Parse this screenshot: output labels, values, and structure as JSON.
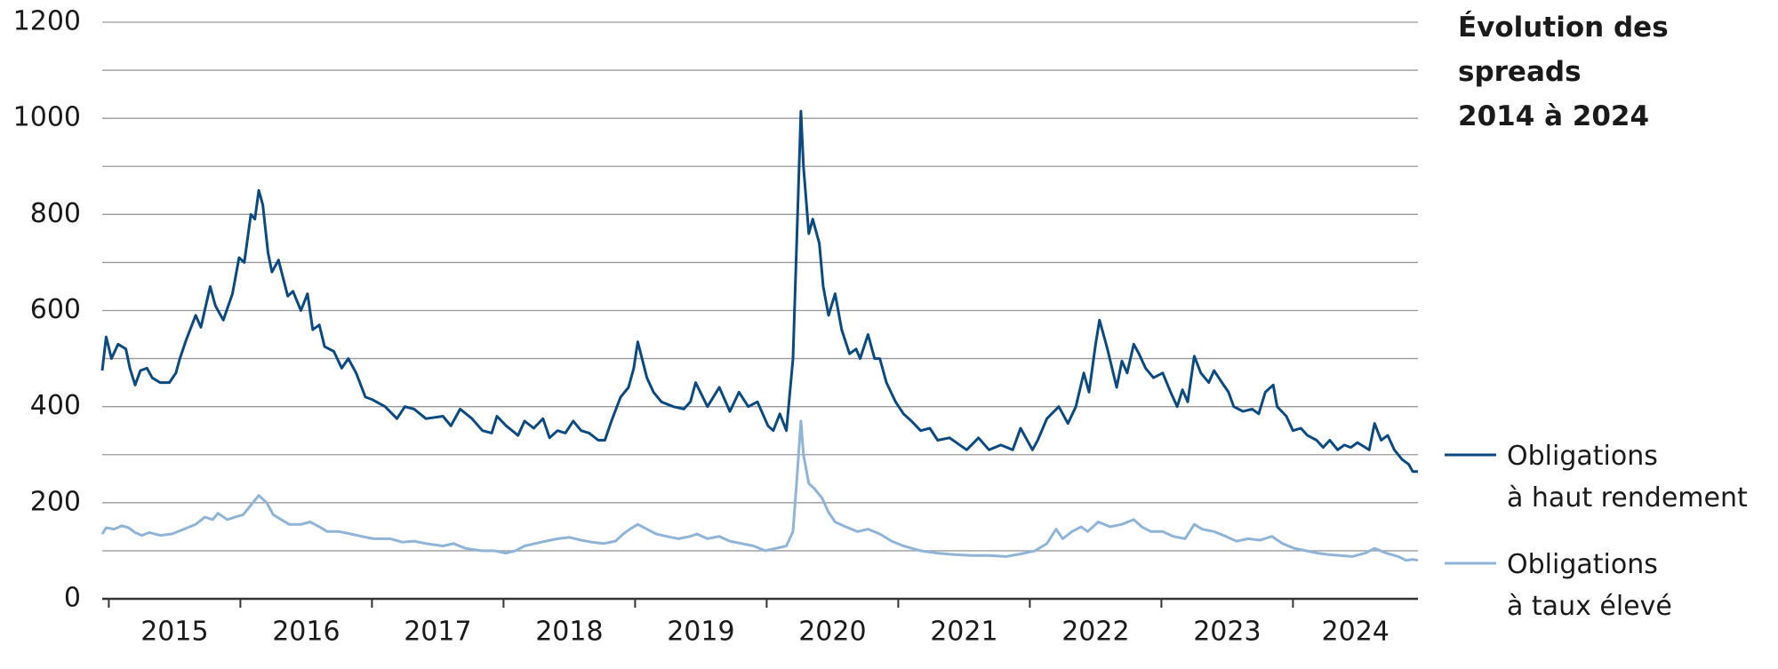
{
  "chart_data": {
    "type": "line",
    "title": "Évolution des spreads\n2014 à 2024",
    "xlim": [
      2014.95,
      2024.95
    ],
    "xticks": [
      {
        "value": 2015,
        "label": "2015"
      },
      {
        "value": 2016,
        "label": "2016"
      },
      {
        "value": 2017,
        "label": "2017"
      },
      {
        "value": 2018,
        "label": "2018"
      },
      {
        "value": 2019,
        "label": "2019"
      },
      {
        "value": 2020,
        "label": "2020"
      },
      {
        "value": 2021,
        "label": "2021"
      },
      {
        "value": 2022,
        "label": "2022"
      },
      {
        "value": 2023,
        "label": "2023"
      },
      {
        "value": 2024,
        "label": "2024"
      }
    ],
    "ylim": [
      0,
      1200
    ],
    "yticks": [
      0,
      200,
      400,
      600,
      800,
      1000,
      1200
    ],
    "ygrid": [
      100,
      200,
      300,
      400,
      500,
      600,
      700,
      800,
      900,
      1000,
      1100,
      1200
    ],
    "series": [
      {
        "name": "Obligations\nà haut rendement",
        "color": "#0b4a80",
        "x": [
          2014.95,
          2014.98,
          2015.02,
          2015.07,
          2015.13,
          2015.16,
          2015.2,
          2015.24,
          2015.29,
          2015.33,
          2015.39,
          2015.46,
          2015.51,
          2015.54,
          2015.59,
          2015.66,
          2015.7,
          2015.77,
          2015.81,
          2015.87,
          2015.94,
          2015.99,
          2016.03,
          2016.08,
          2016.11,
          2016.14,
          2016.17,
          2016.21,
          2016.24,
          2016.29,
          2016.36,
          2016.4,
          2016.46,
          2016.51,
          2016.55,
          2016.6,
          2016.64,
          2016.71,
          2016.77,
          2016.82,
          2016.88,
          2016.95,
          2017.0,
          2017.1,
          2017.19,
          2017.25,
          2017.32,
          2017.41,
          2017.54,
          2017.6,
          2017.67,
          2017.76,
          2017.84,
          2017.91,
          2017.95,
          2018.02,
          2018.11,
          2018.16,
          2018.23,
          2018.3,
          2018.35,
          2018.41,
          2018.47,
          2018.53,
          2018.59,
          2018.65,
          2018.72,
          2018.77,
          2018.82,
          2018.89,
          2018.95,
          2018.99,
          2019.02,
          2019.09,
          2019.14,
          2019.2,
          2019.29,
          2019.37,
          2019.42,
          2019.46,
          2019.55,
          2019.64,
          2019.72,
          2019.79,
          2019.86,
          2019.93,
          2020.01,
          2020.05,
          2020.1,
          2020.15,
          2020.2,
          2020.26,
          2020.28,
          2020.32,
          2020.35,
          2020.4,
          2020.43,
          2020.47,
          2020.52,
          2020.57,
          2020.63,
          2020.68,
          2020.71,
          2020.77,
          2020.82,
          2020.86,
          2020.91,
          2020.98,
          2021.04,
          2021.1,
          2021.17,
          2021.24,
          2021.3,
          2021.39,
          2021.52,
          2021.61,
          2021.69,
          2021.78,
          2021.87,
          2021.93,
          2022.02,
          2022.06,
          2022.13,
          2022.22,
          2022.29,
          2022.35,
          2022.41,
          2022.45,
          2022.5,
          2022.53,
          2022.59,
          2022.66,
          2022.7,
          2022.74,
          2022.79,
          2022.83,
          2022.88,
          2022.94,
          2023.01,
          2023.07,
          2023.12,
          2023.16,
          2023.2,
          2023.25,
          2023.3,
          2023.36,
          2023.4,
          2023.46,
          2023.51,
          2023.55,
          2023.62,
          2023.69,
          2023.74,
          2023.79,
          2023.85,
          2023.88,
          2023.95,
          2024.0,
          2024.06,
          2024.11,
          2024.18,
          2024.23,
          2024.28,
          2024.34,
          2024.39,
          2024.44,
          2024.49,
          2024.55,
          2024.58,
          2024.62,
          2024.67,
          2024.72,
          2024.77,
          2024.83,
          2024.88,
          2024.91,
          2024.95
        ],
        "values": [
          475,
          545,
          500,
          530,
          520,
          480,
          445,
          475,
          480,
          460,
          450,
          450,
          470,
          500,
          540,
          590,
          565,
          650,
          610,
          580,
          635,
          710,
          700,
          800,
          790,
          850,
          820,
          720,
          680,
          705,
          630,
          640,
          600,
          635,
          560,
          570,
          525,
          515,
          480,
          500,
          470,
          420,
          415,
          400,
          375,
          400,
          395,
          375,
          380,
          360,
          395,
          375,
          350,
          345,
          380,
          360,
          340,
          370,
          355,
          375,
          335,
          350,
          345,
          370,
          350,
          345,
          330,
          330,
          370,
          420,
          440,
          480,
          535,
          460,
          430,
          410,
          400,
          395,
          410,
          450,
          400,
          440,
          390,
          430,
          400,
          410,
          360,
          350,
          385,
          350,
          500,
          1015,
          900,
          760,
          790,
          740,
          650,
          590,
          635,
          560,
          510,
          520,
          500,
          550,
          500,
          500,
          450,
          410,
          385,
          370,
          350,
          355,
          330,
          335,
          310,
          335,
          310,
          320,
          310,
          355,
          310,
          330,
          375,
          400,
          365,
          400,
          470,
          430,
          530,
          580,
          520,
          440,
          495,
          470,
          530,
          510,
          480,
          460,
          470,
          430,
          400,
          435,
          410,
          505,
          470,
          450,
          475,
          450,
          430,
          400,
          390,
          395,
          385,
          430,
          445,
          400,
          380,
          350,
          355,
          340,
          330,
          315,
          330,
          310,
          320,
          315,
          325,
          315,
          310,
          365,
          330,
          340,
          310,
          290,
          280,
          265,
          265
        ]
      },
      {
        "name": "Obligations\nà taux élevé",
        "color": "#8fb4d6",
        "x": [
          2014.95,
          2014.98,
          2015.04,
          2015.1,
          2015.15,
          2015.2,
          2015.25,
          2015.31,
          2015.39,
          2015.48,
          2015.57,
          2015.66,
          2015.73,
          2015.79,
          2015.83,
          2015.9,
          2015.96,
          2016.02,
          2016.08,
          2016.14,
          2016.2,
          2016.25,
          2016.31,
          2016.37,
          2016.46,
          2016.53,
          2016.6,
          2016.66,
          2016.75,
          2016.84,
          2016.92,
          2017.01,
          2017.14,
          2017.23,
          2017.32,
          2017.41,
          2017.54,
          2017.62,
          2017.71,
          2017.83,
          2017.93,
          2018.02,
          2018.09,
          2018.16,
          2018.24,
          2018.32,
          2018.41,
          2018.5,
          2018.59,
          2018.67,
          2018.76,
          2018.85,
          2018.91,
          2018.96,
          2019.02,
          2019.09,
          2019.16,
          2019.24,
          2019.33,
          2019.42,
          2019.47,
          2019.55,
          2019.64,
          2019.72,
          2019.81,
          2019.9,
          2019.99,
          2020.07,
          2020.15,
          2020.2,
          2020.23,
          2020.26,
          2020.28,
          2020.32,
          2020.36,
          2020.42,
          2020.47,
          2020.52,
          2020.6,
          2020.69,
          2020.77,
          2020.86,
          2020.95,
          2021.04,
          2021.17,
          2021.3,
          2021.43,
          2021.56,
          2021.69,
          2021.82,
          2021.96,
          2022.04,
          2022.13,
          2022.2,
          2022.25,
          2022.32,
          2022.39,
          2022.44,
          2022.52,
          2022.61,
          2022.7,
          2022.79,
          2022.85,
          2022.92,
          2023.01,
          2023.09,
          2023.18,
          2023.25,
          2023.31,
          2023.4,
          2023.49,
          2023.57,
          2023.66,
          2023.75,
          2023.84,
          2023.92,
          2024.01,
          2024.1,
          2024.19,
          2024.27,
          2024.36,
          2024.45,
          2024.55,
          2024.62,
          2024.71,
          2024.8,
          2024.86,
          2024.91,
          2024.95
        ],
        "values": [
          135,
          148,
          145,
          152,
          148,
          138,
          132,
          138,
          132,
          135,
          145,
          155,
          170,
          165,
          178,
          165,
          170,
          175,
          195,
          215,
          200,
          175,
          165,
          155,
          155,
          160,
          150,
          140,
          140,
          135,
          130,
          125,
          125,
          118,
          120,
          115,
          110,
          115,
          105,
          100,
          100,
          95,
          100,
          110,
          115,
          120,
          125,
          128,
          122,
          118,
          115,
          120,
          135,
          145,
          155,
          145,
          135,
          130,
          125,
          130,
          135,
          125,
          130,
          120,
          115,
          110,
          100,
          105,
          110,
          140,
          250,
          370,
          300,
          240,
          230,
          210,
          180,
          160,
          150,
          140,
          145,
          135,
          120,
          110,
          100,
          95,
          92,
          90,
          90,
          88,
          95,
          100,
          115,
          145,
          125,
          140,
          150,
          140,
          160,
          150,
          155,
          165,
          150,
          140,
          140,
          130,
          125,
          155,
          145,
          140,
          130,
          120,
          125,
          122,
          130,
          115,
          105,
          100,
          95,
          92,
          90,
          88,
          95,
          105,
          95,
          88,
          80,
          82,
          80
        ]
      }
    ]
  }
}
